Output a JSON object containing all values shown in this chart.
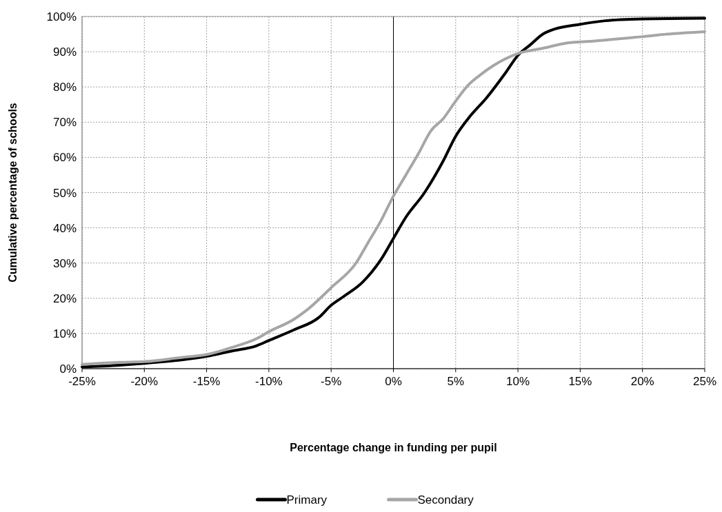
{
  "chart_data": {
    "type": "line",
    "xlabel": "Percentage change in funding per pupil",
    "ylabel": "Cumulative percentage of schools",
    "xlim": [
      -25,
      25
    ],
    "xticks": [
      {
        "value": -25,
        "label": "-25%"
      },
      {
        "value": -20,
        "label": "-20%"
      },
      {
        "value": -15,
        "label": "-15%"
      },
      {
        "value": -10,
        "label": "-10%"
      },
      {
        "value": -5,
        "label": "-5%"
      },
      {
        "value": 0,
        "label": "0%"
      },
      {
        "value": 5,
        "label": "5%"
      },
      {
        "value": 10,
        "label": "10%"
      },
      {
        "value": 15,
        "label": "15%"
      },
      {
        "value": 20,
        "label": "20%"
      },
      {
        "value": 25,
        "label": "25%"
      }
    ],
    "ylim": [
      0,
      100
    ],
    "yticks": [
      {
        "value": 0,
        "label": "0%"
      },
      {
        "value": 10,
        "label": "10%"
      },
      {
        "value": 20,
        "label": "20%"
      },
      {
        "value": 30,
        "label": "30%"
      },
      {
        "value": 40,
        "label": "40%"
      },
      {
        "value": 50,
        "label": "50%"
      },
      {
        "value": 60,
        "label": "60%"
      },
      {
        "value": 70,
        "label": "70%"
      },
      {
        "value": 80,
        "label": "80%"
      },
      {
        "value": 90,
        "label": "90%"
      },
      {
        "value": 100,
        "label": "100%"
      }
    ],
    "grid": true,
    "legend": "bottom",
    "ref_lines": [
      {
        "axis": "x",
        "value": 0,
        "color": "#000000"
      }
    ],
    "series": [
      {
        "name": "Primary",
        "color": "#000000",
        "x": [
          -25,
          -22,
          -20,
          -17,
          -15,
          -13,
          -11,
          -10,
          -8,
          -6,
          -5,
          -4,
          -2.5,
          -1,
          0,
          1,
          2.5,
          4,
          5,
          6,
          7.5,
          9,
          10,
          11,
          12,
          13,
          15,
          17,
          20,
          25
        ],
        "values": [
          0.5,
          1,
          1.5,
          2.5,
          3.5,
          5,
          6.5,
          8,
          11,
          14.5,
          18,
          20.5,
          24.5,
          31,
          37,
          43,
          50,
          59,
          66,
          71,
          77,
          84,
          89,
          92,
          95,
          96.5,
          97.8,
          98.8,
          99.3,
          99.5
        ]
      },
      {
        "name": "Secondary",
        "color": "#a6a6a6",
        "x": [
          -25,
          -22,
          -20,
          -17,
          -15,
          -13,
          -11,
          -10,
          -8,
          -7,
          -5,
          -3,
          -2,
          -1,
          0,
          1,
          2,
          3,
          4,
          5,
          6,
          7,
          8,
          10,
          12,
          14,
          16,
          20,
          22,
          25
        ],
        "values": [
          1.2,
          1.8,
          2,
          3.2,
          4,
          6,
          8.5,
          10.5,
          14,
          16.5,
          23,
          30,
          36,
          42,
          49,
          55,
          61,
          67.5,
          71,
          76,
          80.5,
          83.5,
          86,
          89.5,
          91,
          92.5,
          93,
          94.3,
          95,
          95.7
        ]
      }
    ]
  }
}
